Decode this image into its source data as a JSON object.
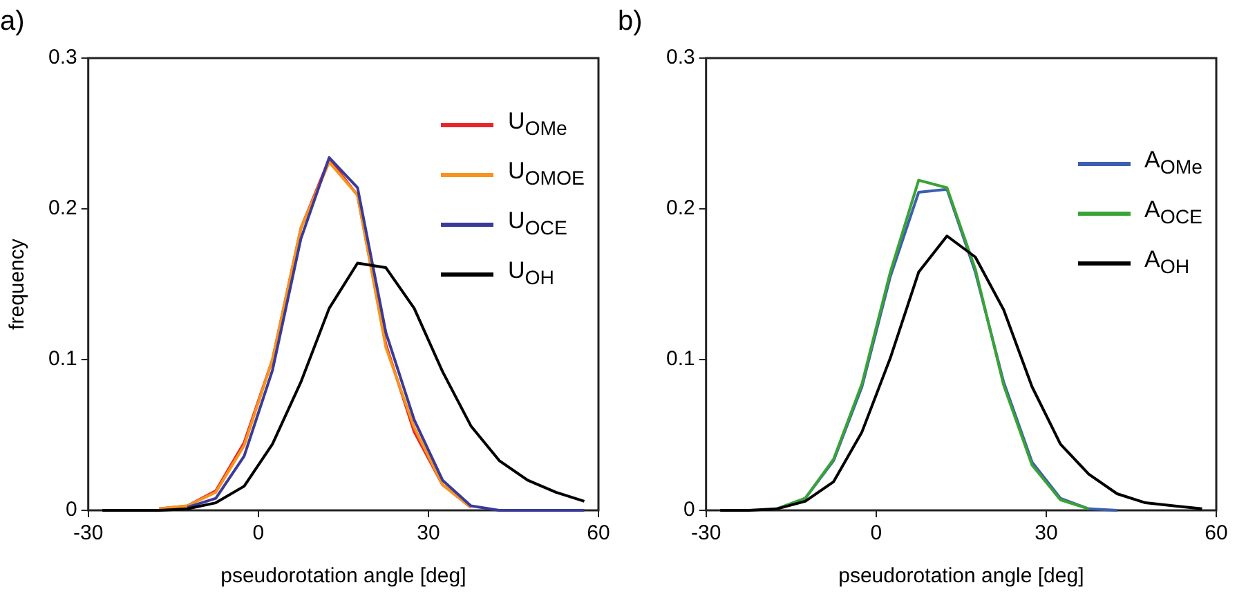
{
  "chart_data": [
    {
      "type": "line",
      "title": "a)",
      "xlabel": "pseudorotation angle [deg]",
      "ylabel": "frequency",
      "x": [
        -27.5,
        -22.5,
        -17.5,
        -12.5,
        -7.5,
        -2.5,
        2.5,
        7.5,
        12.5,
        17.5,
        22.5,
        27.5,
        32.5,
        37.5,
        42.5,
        47.5,
        52.5,
        57.5
      ],
      "xlim": [
        -30,
        60
      ],
      "xticks": [
        -30,
        0,
        30,
        60
      ],
      "ylim": [
        0,
        0.3
      ],
      "yticks": [
        0,
        0.1,
        0.2,
        0.3
      ],
      "grid": false,
      "legend": "top right",
      "marker": "none",
      "line_style": "solid",
      "series": [
        {
          "name": "U$_{OMe}$",
          "color": "#e8262a",
          "values": [
            null,
            null,
            0.001,
            0.003,
            0.013,
            0.045,
            0.1,
            0.187,
            0.233,
            0.209,
            0.11,
            0.052,
            0.017,
            0.002,
            null,
            null,
            null,
            null
          ]
        },
        {
          "name": "U$_{OMOE}$",
          "color": "#f7941d",
          "values": [
            null,
            null,
            0.001,
            0.003,
            0.012,
            0.043,
            0.1,
            0.187,
            0.231,
            0.209,
            0.108,
            0.055,
            0.017,
            0.002,
            null,
            null,
            null,
            null
          ]
        },
        {
          "name": "U$_{OCE}$",
          "color": "#3a3a9a",
          "values": [
            null,
            null,
            null,
            0.002,
            0.008,
            0.036,
            0.093,
            0.18,
            0.234,
            0.214,
            0.118,
            0.06,
            0.02,
            0.003,
            0,
            0,
            0,
            0
          ]
        },
        {
          "name": "U$_{OH}$",
          "color": "#000000",
          "values": [
            0,
            0,
            0,
            0.001,
            0.005,
            0.016,
            0.044,
            0.085,
            0.134,
            0.164,
            0.161,
            0.134,
            0.092,
            0.056,
            0.033,
            0.02,
            0.012,
            0.006
          ]
        }
      ]
    },
    {
      "type": "line",
      "title": "b)",
      "xlabel": "pseudorotation angle [deg]",
      "x": [
        -27.5,
        -22.5,
        -17.5,
        -12.5,
        -7.5,
        -2.5,
        2.5,
        7.5,
        12.5,
        17.5,
        22.5,
        27.5,
        32.5,
        37.5,
        42.5,
        47.5,
        52.5,
        57.5
      ],
      "xlim": [
        -30,
        60
      ],
      "xticks": [
        -30,
        0,
        30,
        60
      ],
      "ylim": [
        0,
        0.3
      ],
      "yticks": [
        0,
        0.1,
        0.2,
        0.3
      ],
      "grid": false,
      "legend": "right",
      "marker": "none",
      "line_style": "solid",
      "series": [
        {
          "name": "A$_{OMe}$",
          "color": "#3c5fb0",
          "values": [
            null,
            null,
            0.001,
            0.008,
            0.033,
            0.082,
            0.155,
            0.211,
            0.213,
            0.158,
            0.085,
            0.032,
            0.008,
            0.001,
            0,
            null,
            null,
            null
          ]
        },
        {
          "name": "A$_{OCE}$",
          "color": "#3aa335",
          "values": [
            null,
            null,
            0.001,
            0.008,
            0.034,
            0.084,
            0.158,
            0.219,
            0.214,
            0.16,
            0.083,
            0.03,
            0.007,
            0.001,
            null,
            null,
            null,
            null
          ]
        },
        {
          "name": "A$_{OH}$",
          "color": "#000000",
          "values": [
            0,
            0,
            0.001,
            0.006,
            0.019,
            0.052,
            0.101,
            0.158,
            0.182,
            0.168,
            0.133,
            0.082,
            0.044,
            0.024,
            0.011,
            0.005,
            0.003,
            0.001
          ]
        }
      ]
    }
  ]
}
